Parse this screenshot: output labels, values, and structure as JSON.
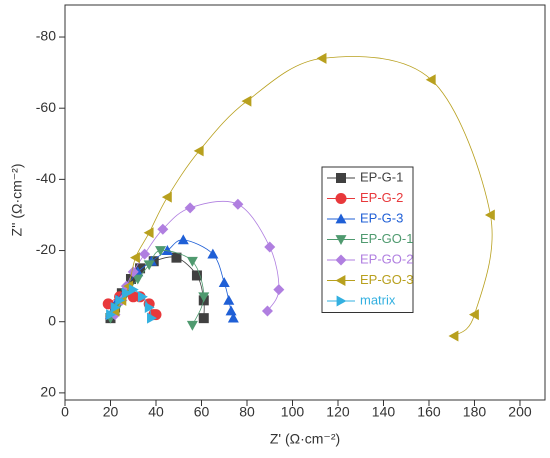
{
  "chart_data": {
    "type": "line",
    "xlabel": "Z' (Ω·cm⁻²)",
    "ylabel": "Z'' (Ω·cm⁻²)",
    "xlim": [
      0,
      211
    ],
    "xticks": [
      0,
      20,
      40,
      60,
      80,
      100,
      120,
      140,
      160,
      180,
      200
    ],
    "ylim": [
      22,
      -89
    ],
    "yticks": [
      -80,
      -60,
      -40,
      -20,
      0,
      20
    ],
    "legend": "center",
    "series": [
      {
        "name": "EP-G-1",
        "color": "#404040",
        "marker": "square",
        "x": [
          20,
          22,
          25,
          29,
          33,
          39,
          49,
          58,
          61,
          61
        ],
        "values": [
          -1,
          -4,
          -8,
          -12,
          -15,
          -17,
          -18,
          -13,
          -6,
          -1
        ]
      },
      {
        "name": "EP-G-2",
        "color": "#e8383b",
        "marker": "circle",
        "x": [
          19,
          24,
          30,
          33,
          37,
          39,
          40
        ],
        "values": [
          -5,
          -7,
          -7,
          -7,
          -5,
          -2,
          -2
        ]
      },
      {
        "name": "EP-G-3",
        "color": "#1f5fd6",
        "marker": "triangle-up",
        "x": [
          20,
          23,
          27,
          32,
          38,
          45,
          52,
          65,
          70,
          72,
          73,
          74
        ],
        "values": [
          -2,
          -6,
          -10,
          -14,
          -17,
          -20,
          -23,
          -19,
          -11,
          -6,
          -3,
          -1
        ]
      },
      {
        "name": "EP-GO-1",
        "color": "#4f9a6f",
        "marker": "triangle-down",
        "x": [
          20,
          23,
          27,
          32,
          37,
          42,
          56,
          61,
          56
        ],
        "values": [
          -1,
          -4,
          -8,
          -12,
          -16,
          -20,
          -17,
          -7,
          1
        ]
      },
      {
        "name": "EP-GO-2",
        "color": "#b07fe0",
        "marker": "diamond",
        "x": [
          22,
          25,
          27,
          30,
          35,
          43,
          55,
          76,
          90,
          94,
          89
        ],
        "values": [
          -2,
          -6,
          -10,
          -14,
          -19,
          -26,
          -32,
          -33,
          -21,
          -9,
          -3
        ]
      },
      {
        "name": "EP-GO-3",
        "color": "#b8a01e",
        "marker": "triangle-left",
        "x": [
          22,
          25,
          28,
          31,
          37,
          45,
          59,
          80,
          113,
          161,
          187,
          180,
          171
        ],
        "values": [
          -3,
          -6,
          -10,
          -18,
          -25,
          -35,
          -48,
          -62,
          -74,
          -68,
          -30,
          -2,
          4
        ]
      },
      {
        "name": "matrix",
        "color": "#33b0e0",
        "marker": "triangle-right",
        "x": [
          20,
          22,
          24,
          27,
          30,
          34,
          37,
          38
        ],
        "values": [
          -2,
          -4,
          -6,
          -8,
          -9,
          -7,
          -4,
          -1
        ]
      }
    ]
  }
}
